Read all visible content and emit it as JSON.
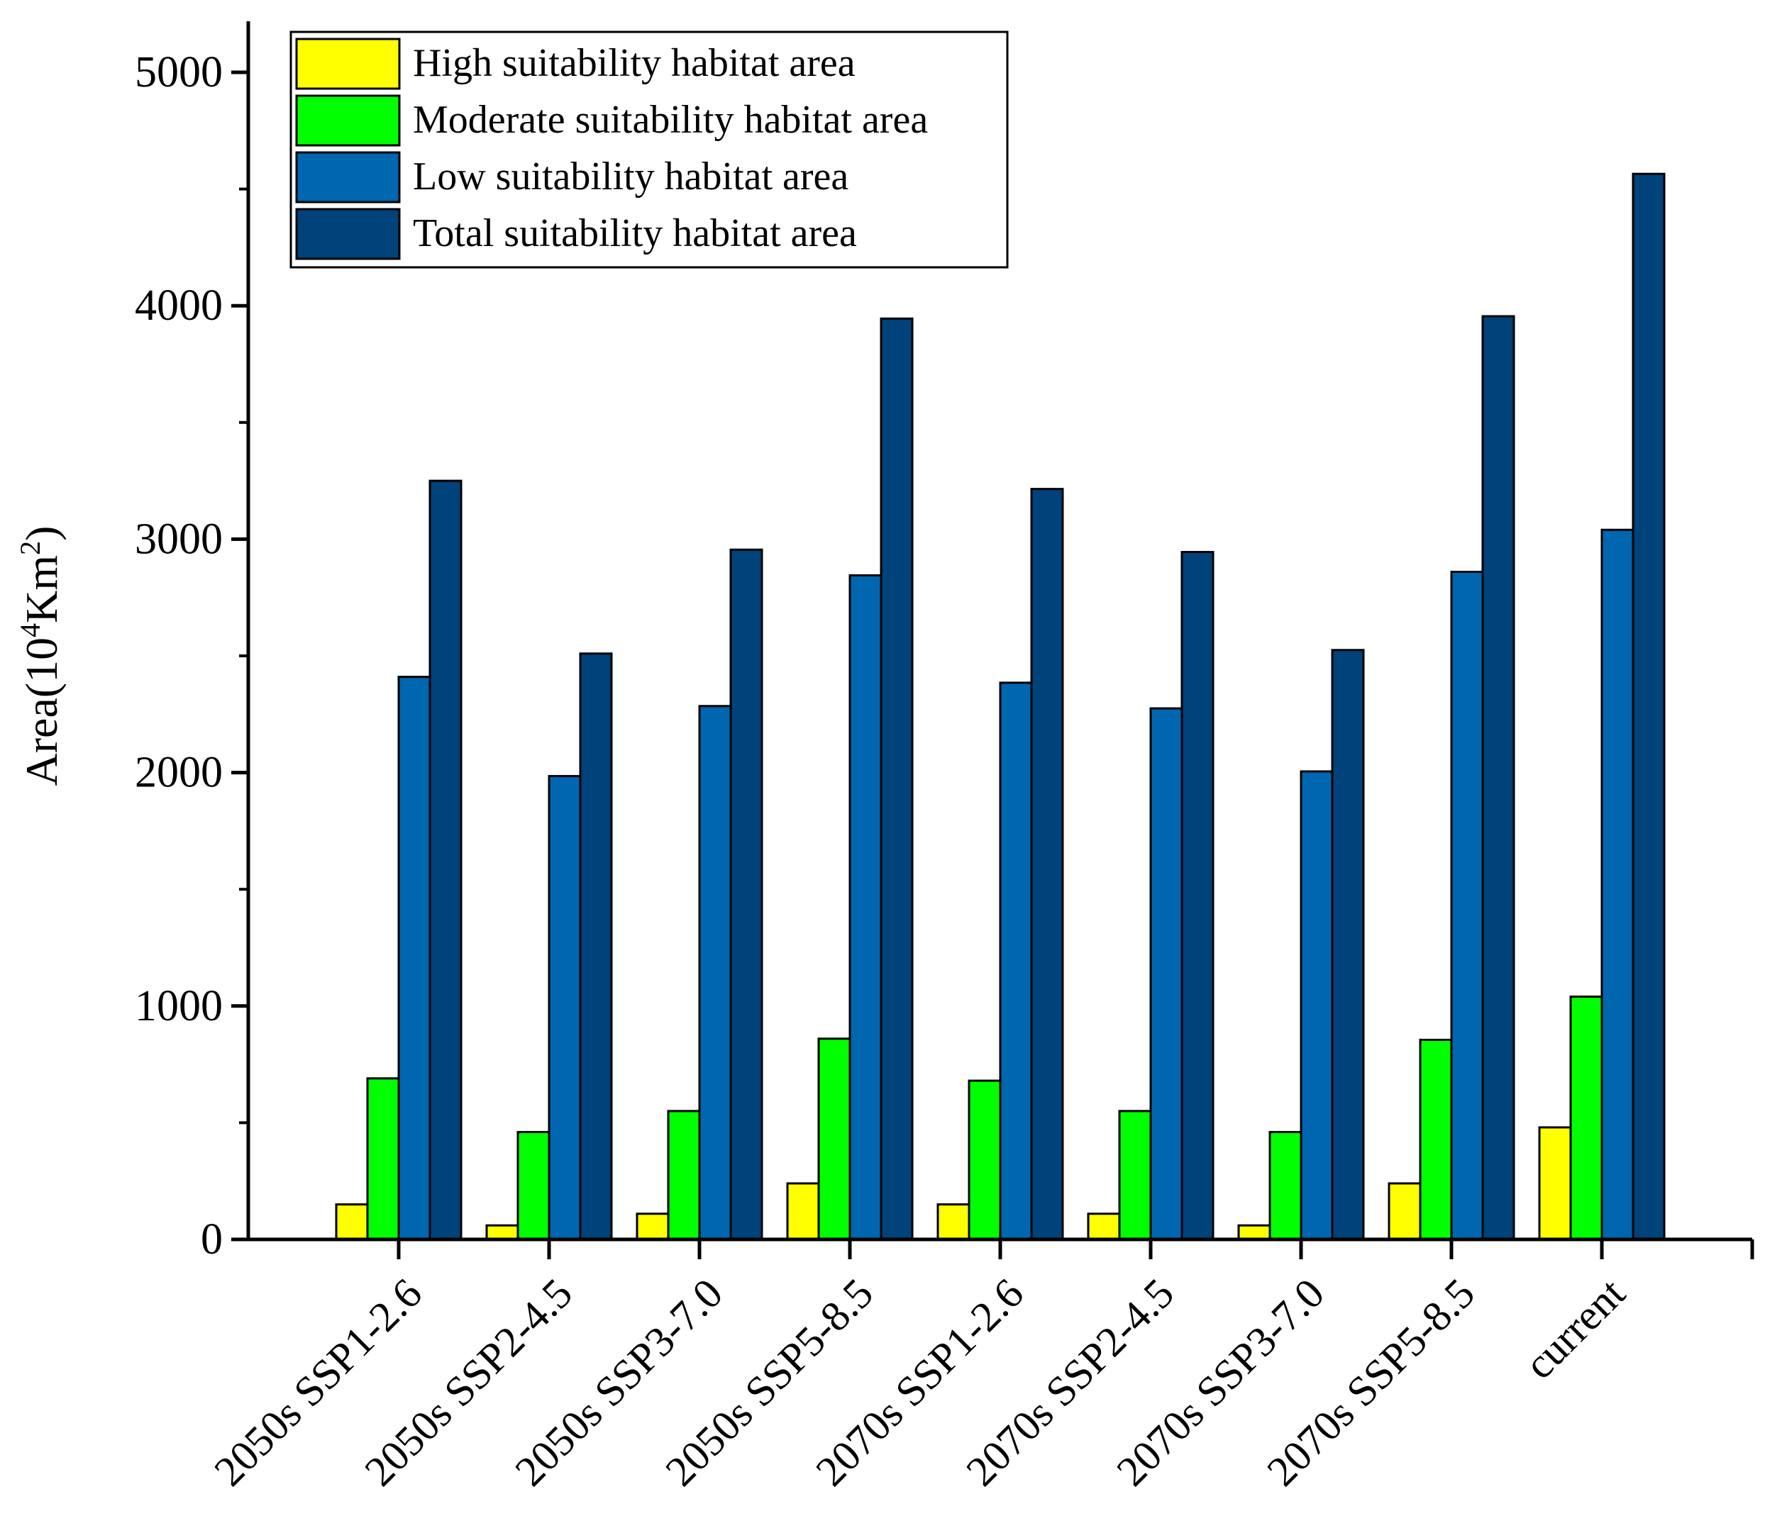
{
  "chart_data": {
    "type": "bar",
    "title": "",
    "xlabel": "",
    "ylabel": "Area(10⁴Km²)",
    "ylabel_parts": {
      "base": "Area(10",
      "sup1": "4",
      "mid": "Km",
      "sup2": "2",
      "end": ")"
    },
    "ylim": [
      0,
      5000
    ],
    "yticks": [
      0,
      1000,
      2000,
      3000,
      4000,
      5000
    ],
    "grid": false,
    "legend_position": "top-left",
    "categories": [
      "2050s SSP1-2.6",
      "2050s SSP2-4.5",
      "2050s SSP3-7.0",
      "2050s SSP5-8.5",
      "2070s SSP1-2.6",
      "2070s SSP2-4.5",
      "2070s SSP3-7.0",
      "2070s SSP5-8.5",
      "current"
    ],
    "series": [
      {
        "name": "High suitability habitat area",
        "color": "#ffff00",
        "values": [
          150,
          60,
          110,
          240,
          150,
          110,
          60,
          240,
          480
        ]
      },
      {
        "name": "Moderate suitability habitat area",
        "color": "#00ff00",
        "values": [
          690,
          460,
          550,
          860,
          680,
          550,
          460,
          855,
          1040
        ]
      },
      {
        "name": "Low suitability habitat area",
        "color": "#0066b0",
        "values": [
          2410,
          1985,
          2285,
          2845,
          2385,
          2275,
          2005,
          2860,
          3040
        ]
      },
      {
        "name": "Total suitability habitat area",
        "color": "#00427a",
        "values": [
          3250,
          2510,
          2955,
          3945,
          3215,
          2945,
          2525,
          3955,
          4565
        ]
      }
    ]
  }
}
